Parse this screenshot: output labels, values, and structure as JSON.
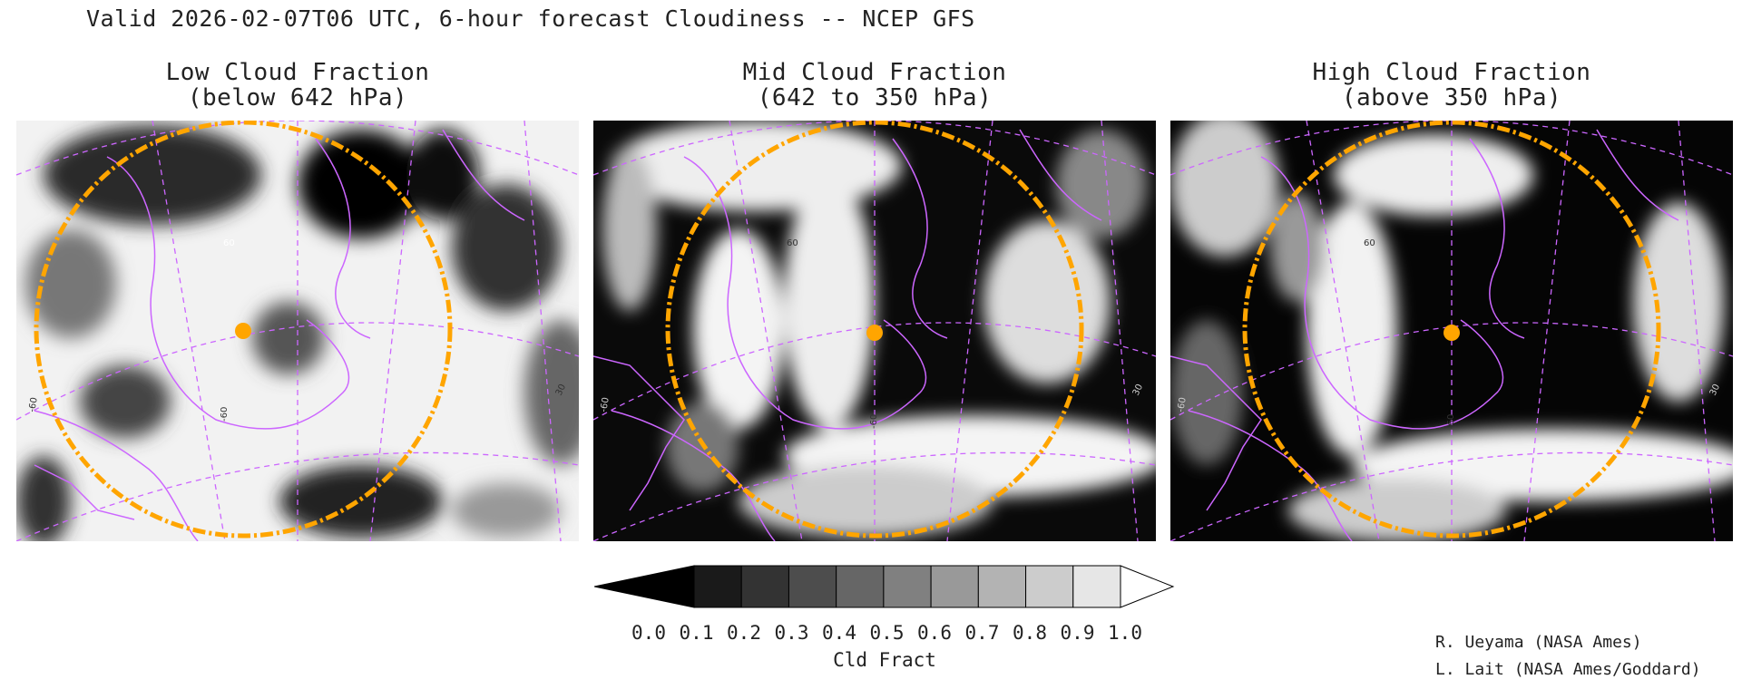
{
  "title": "Valid 2026-02-07T06 UTC, 6-hour forecast Cloudiness -- NCEP GFS",
  "panels": [
    {
      "title_line1": "Low Cloud Fraction",
      "title_line2": "(below 642 hPa)",
      "lat_label": "60",
      "lon_label": "-60",
      "edge_label_left": "-60",
      "edge_label_right": "30"
    },
    {
      "title_line1": "Mid Cloud Fraction",
      "title_line2": "(642 to 350 hPa)",
      "lat_label": "60",
      "lon_label": "-60",
      "edge_label_left": "-60",
      "edge_label_right": "30"
    },
    {
      "title_line1": "High Cloud Fraction",
      "title_line2": "(above 350 hPa)",
      "lat_label": "60",
      "lon_label": "-60",
      "edge_label_left": "-60",
      "edge_label_right": "30"
    }
  ],
  "colorbar": {
    "ticks": [
      "0.0",
      "0.1",
      "0.2",
      "0.3",
      "0.4",
      "0.5",
      "0.6",
      "0.7",
      "0.8",
      "0.9",
      "1.0"
    ],
    "colors": [
      "#000000",
      "#1a1a1a",
      "#333333",
      "#4d4d4d",
      "#666666",
      "#808080",
      "#999999",
      "#b3b3b3",
      "#cccccc",
      "#e6e6e6"
    ],
    "label": "Cld Fract"
  },
  "colors": {
    "coastline": "#cc66ff",
    "range_ring": "#ffa500",
    "site_marker": "#ffa500"
  },
  "credits": [
    "R. Ueyama (NASA Ames)",
    "L. Lait (NASA Ames/Goddard)"
  ]
}
